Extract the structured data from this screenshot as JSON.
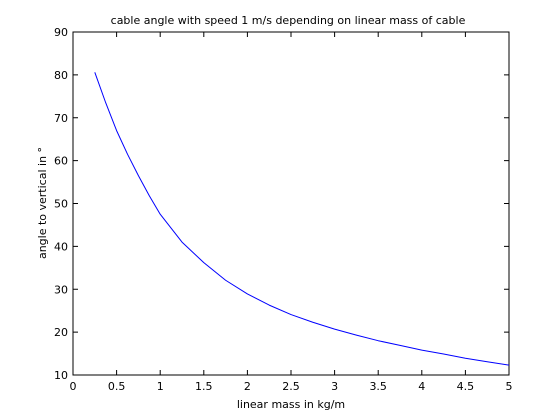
{
  "chart_data": {
    "type": "line",
    "title": "cable angle with speed 1 m/s depending on linear mass of cable",
    "xlabel": "linear mass in kg/m",
    "ylabel": "angle to vertical in °",
    "xlim": [
      0,
      5
    ],
    "ylim": [
      10,
      90
    ],
    "x_ticks": [
      "0",
      "0.5",
      "1",
      "1.5",
      "2",
      "2.5",
      "3",
      "3.5",
      "4",
      "4.5",
      "5"
    ],
    "y_ticks": [
      "10",
      "20",
      "30",
      "40",
      "50",
      "60",
      "70",
      "80",
      "90"
    ],
    "grid": false,
    "series": [
      {
        "color": "#0000ff",
        "x": [
          0.25,
          0.375,
          0.5,
          0.625,
          0.75,
          0.875,
          1.0,
          1.25,
          1.5,
          1.75,
          2.0,
          2.25,
          2.5,
          2.75,
          3.0,
          3.25,
          3.5,
          3.75,
          4.0,
          4.25,
          4.5,
          4.75,
          5.0
        ],
        "y": [
          80.6,
          73.5,
          67.0,
          61.5,
          56.5,
          51.8,
          47.5,
          41.0,
          36.2,
          32.1,
          28.9,
          26.3,
          24.1,
          22.3,
          20.7,
          19.3,
          18.0,
          16.9,
          15.8,
          14.9,
          13.9,
          13.1,
          12.3
        ]
      }
    ]
  }
}
